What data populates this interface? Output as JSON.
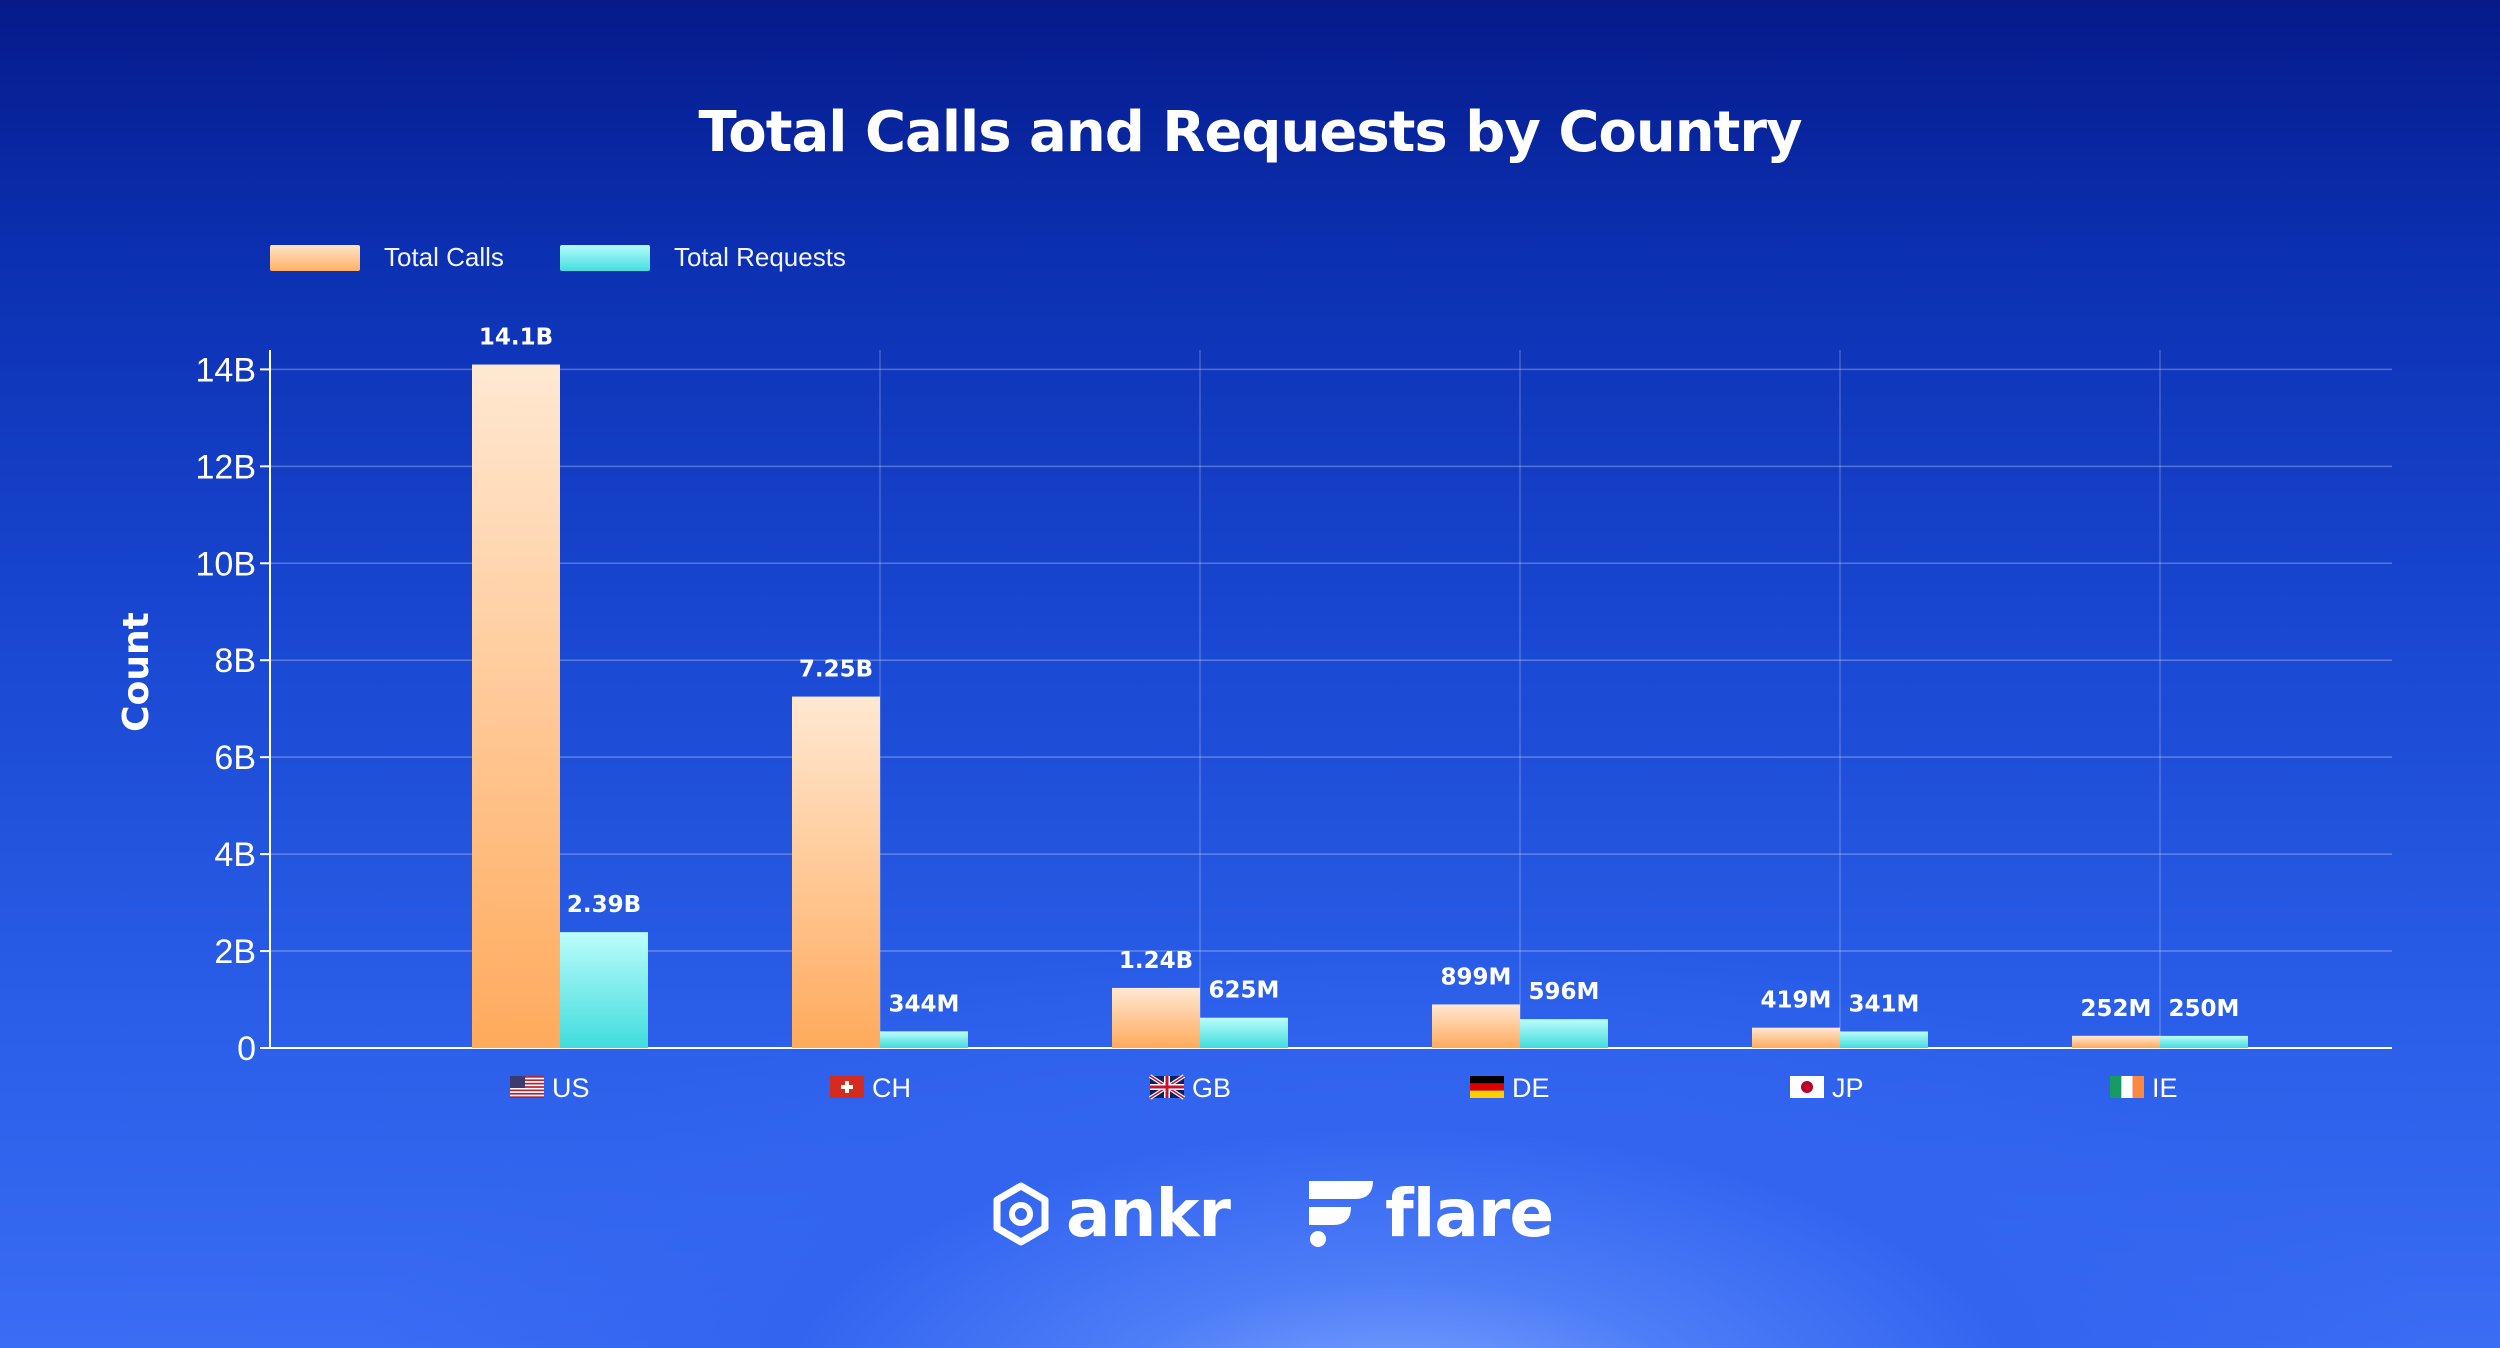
{
  "title": "Total Calls and Requests by Country",
  "legend": {
    "calls_label": "Total Calls",
    "requests_label": "Total Requests"
  },
  "colors": {
    "calls_top": "#ffe4c8",
    "calls_bottom": "#ffb066",
    "requests_top": "#b5fbfb",
    "requests_bottom": "#45dfe0"
  },
  "chart_data": {
    "type": "bar",
    "title": "Total Calls and Requests by Country",
    "xlabel": "",
    "ylabel": "Count",
    "ylim": [
      0,
      14.4
    ],
    "y_unit": "billions",
    "yticks": [
      0,
      2,
      4,
      6,
      8,
      10,
      12,
      14
    ],
    "ytick_labels": [
      "0",
      "2B",
      "4B",
      "6B",
      "8B",
      "10B",
      "12B",
      "14B"
    ],
    "grid": true,
    "legend_position": "top-left",
    "categories": [
      "US",
      "CH",
      "GB",
      "DE",
      "JP",
      "IE"
    ],
    "flags": [
      "us-flag-icon",
      "ch-flag-icon",
      "gb-flag-icon",
      "de-flag-icon",
      "jp-flag-icon",
      "ie-flag-icon"
    ],
    "series": [
      {
        "name": "Total Calls",
        "values": [
          14.1,
          7.25,
          1.24,
          0.899,
          0.419,
          0.252
        ],
        "labels": [
          "14.1B",
          "7.25B",
          "1.24B",
          "899M",
          "419M",
          "252M"
        ]
      },
      {
        "name": "Total Requests",
        "values": [
          2.39,
          0.344,
          0.625,
          0.596,
          0.341,
          0.25
        ],
        "labels": [
          "2.39B",
          "344M",
          "625M",
          "596M",
          "341M",
          "250M"
        ]
      }
    ]
  },
  "logos": {
    "ankr": "ankr",
    "flare": "flare"
  }
}
